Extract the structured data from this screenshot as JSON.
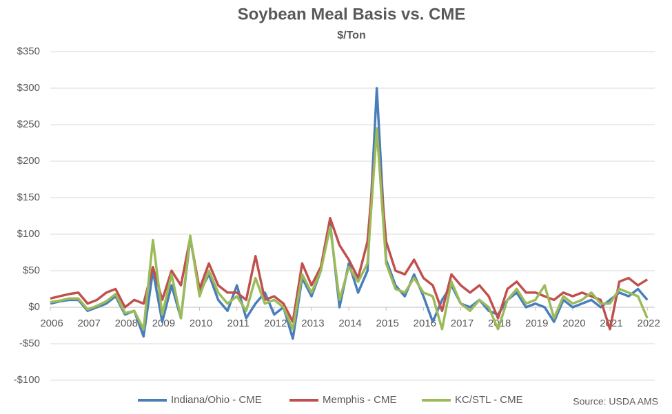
{
  "chart_data": {
    "type": "line",
    "title": "Soybean Meal Basis vs. CME",
    "subtitle": "$/Ton",
    "source": "Source: USDA AMS",
    "x": [
      2006,
      2006.25,
      2006.5,
      2006.75,
      2007,
      2007.25,
      2007.5,
      2007.75,
      2008,
      2008.25,
      2008.5,
      2008.75,
      2009,
      2009.25,
      2009.5,
      2009.75,
      2010,
      2010.25,
      2010.5,
      2010.75,
      2011,
      2011.25,
      2011.5,
      2011.75,
      2012,
      2012.25,
      2012.5,
      2012.75,
      2013,
      2013.25,
      2013.5,
      2013.75,
      2014,
      2014.25,
      2014.5,
      2014.75,
      2015,
      2015.25,
      2015.5,
      2015.75,
      2016,
      2016.25,
      2016.5,
      2016.75,
      2017,
      2017.25,
      2017.5,
      2017.75,
      2018,
      2018.25,
      2018.5,
      2018.75,
      2019,
      2019.25,
      2019.5,
      2019.75,
      2020,
      2020.25,
      2020.5,
      2020.75,
      2021,
      2021.25,
      2021.5,
      2021.75,
      2022
    ],
    "series": [
      {
        "name": "Indiana/Ohio - CME",
        "color": "#4a7ebb",
        "values": [
          5,
          8,
          10,
          10,
          -5,
          0,
          5,
          15,
          -10,
          -5,
          -40,
          50,
          -20,
          30,
          -15,
          95,
          20,
          45,
          10,
          -5,
          30,
          -15,
          5,
          20,
          -10,
          0,
          -43,
          40,
          15,
          50,
          115,
          0,
          60,
          20,
          50,
          300,
          65,
          30,
          15,
          45,
          15,
          -20,
          10,
          30,
          5,
          0,
          10,
          -5,
          -10,
          10,
          20,
          0,
          5,
          0,
          -20,
          10,
          0,
          5,
          10,
          0,
          10,
          20,
          15,
          25,
          10
        ]
      },
      {
        "name": "Memphis - CME",
        "color": "#c0504d",
        "values": [
          12,
          15,
          18,
          20,
          5,
          10,
          20,
          25,
          0,
          10,
          5,
          55,
          10,
          50,
          30,
          95,
          25,
          60,
          30,
          20,
          20,
          10,
          70,
          10,
          15,
          5,
          -20,
          60,
          30,
          55,
          122,
          85,
          65,
          40,
          90,
          240,
          90,
          50,
          45,
          65,
          40,
          30,
          -5,
          45,
          30,
          20,
          30,
          15,
          -15,
          25,
          35,
          20,
          20,
          15,
          10,
          20,
          15,
          20,
          15,
          10,
          -30,
          35,
          40,
          30,
          38
        ]
      },
      {
        "name": "KC/STL - CME",
        "color": "#9bbb59",
        "values": [
          7,
          9,
          12,
          12,
          -3,
          2,
          8,
          18,
          -8,
          -5,
          -30,
          92,
          -10,
          45,
          -15,
          98,
          15,
          50,
          20,
          5,
          15,
          -5,
          40,
          5,
          10,
          0,
          -30,
          45,
          20,
          50,
          110,
          10,
          55,
          35,
          60,
          245,
          60,
          25,
          20,
          40,
          20,
          15,
          -30,
          35,
          5,
          -5,
          10,
          0,
          -30,
          10,
          25,
          5,
          10,
          30,
          -15,
          15,
          5,
          10,
          20,
          5,
          5,
          25,
          20,
          15,
          -15
        ]
      }
    ],
    "xlim": [
      2006,
      2022.2
    ],
    "xticks": [
      2006,
      2007,
      2008,
      2009,
      2010,
      2011,
      2012,
      2013,
      2014,
      2015,
      2016,
      2017,
      2018,
      2019,
      2020,
      2021,
      2022
    ],
    "ylim": [
      -100,
      350
    ],
    "yticks": [
      {
        "value": -100,
        "label": "-$100"
      },
      {
        "value": -50,
        "label": "-$50"
      },
      {
        "value": 0,
        "label": "$0"
      },
      {
        "value": 50,
        "label": "$50"
      },
      {
        "value": 100,
        "label": "$100"
      },
      {
        "value": 150,
        "label": "$150"
      },
      {
        "value": 200,
        "label": "$200"
      },
      {
        "value": 250,
        "label": "$250"
      },
      {
        "value": 300,
        "label": "$300"
      },
      {
        "value": 350,
        "label": "$350"
      }
    ],
    "grid": true,
    "legend": "bottom"
  }
}
